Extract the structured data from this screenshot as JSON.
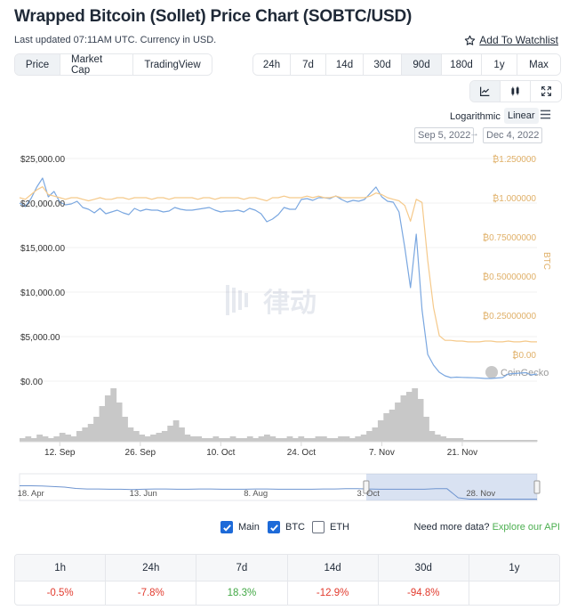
{
  "header": {
    "title": "Wrapped Bitcoin (Sollet) Price Chart (SOBTC/USD)",
    "subtitle": "Last updated 07:11AM UTC. Currency in USD.",
    "watchlist_label": "Add To Watchlist"
  },
  "type_tabs": [
    {
      "label": "Price",
      "active": true
    },
    {
      "label": "Market Cap",
      "active": false
    },
    {
      "label": "TradingView",
      "active": false
    }
  ],
  "range_tabs": [
    {
      "label": "24h",
      "active": false
    },
    {
      "label": "7d",
      "active": false
    },
    {
      "label": "14d",
      "active": false
    },
    {
      "label": "30d",
      "active": false
    },
    {
      "label": "90d",
      "active": true
    },
    {
      "label": "180d",
      "active": false
    },
    {
      "label": "1y",
      "active": false
    },
    {
      "label": "Max",
      "active": false
    }
  ],
  "view_icons": [
    "line-chart-icon",
    "candlestick-icon",
    "fullscreen-icon"
  ],
  "scale": {
    "log_label": "Logarithmic",
    "linear_label": "Linear",
    "active": "Linear"
  },
  "date_range": {
    "from": "Sep 5, 2022",
    "to": "Dec 4, 2022"
  },
  "watermark": {
    "brand": "CoinGecko",
    "logo_text": "律动"
  },
  "chart_data": {
    "type": "line",
    "left_axis": {
      "ticks": [
        "$0.00",
        "$5,000.00",
        "$10,000.00",
        "$15,000.00",
        "$20,000.00",
        "$25,000.00"
      ],
      "range": [
        0,
        25000
      ]
    },
    "right_axis": {
      "label": "BTC",
      "ticks": [
        "₿0.00",
        "₿0.25000000",
        "₿0.50000000",
        "₿0.75000000",
        "₿1.000000",
        "₿1.250000"
      ],
      "range": [
        0,
        1.25
      ]
    },
    "x_ticks": [
      "12. Sep",
      "26. Sep",
      "10. Oct",
      "24. Oct",
      "7. Nov",
      "21. Nov"
    ],
    "x_range_days": [
      0,
      90
    ],
    "x_tick_days": [
      7,
      21,
      35,
      49,
      63,
      77
    ],
    "series": [
      {
        "name": "Main",
        "axis": "left",
        "color": "#7aa7e0",
        "points": [
          [
            0,
            20000
          ],
          [
            1,
            19600
          ],
          [
            2,
            20500
          ],
          [
            3,
            21800
          ],
          [
            4,
            22800
          ],
          [
            5,
            20700
          ],
          [
            6,
            21300
          ],
          [
            7,
            20100
          ],
          [
            8,
            19800
          ],
          [
            9,
            19900
          ],
          [
            10,
            20200
          ],
          [
            11,
            19500
          ],
          [
            12,
            19300
          ],
          [
            13,
            18900
          ],
          [
            14,
            19400
          ],
          [
            15,
            18800
          ],
          [
            16,
            19000
          ],
          [
            17,
            19200
          ],
          [
            18,
            18900
          ],
          [
            19,
            18700
          ],
          [
            20,
            19400
          ],
          [
            21,
            19100
          ],
          [
            22,
            19300
          ],
          [
            23,
            19200
          ],
          [
            24,
            19200
          ],
          [
            25,
            19000
          ],
          [
            26,
            19100
          ],
          [
            27,
            19500
          ],
          [
            28,
            19300
          ],
          [
            29,
            19200
          ],
          [
            30,
            19200
          ],
          [
            31,
            19300
          ],
          [
            32,
            19400
          ],
          [
            33,
            19500
          ],
          [
            34,
            19200
          ],
          [
            35,
            19000
          ],
          [
            36,
            19100
          ],
          [
            37,
            19100
          ],
          [
            38,
            19200
          ],
          [
            39,
            19000
          ],
          [
            40,
            19400
          ],
          [
            41,
            19200
          ],
          [
            42,
            18800
          ],
          [
            43,
            17900
          ],
          [
            44,
            18200
          ],
          [
            45,
            18700
          ],
          [
            46,
            19500
          ],
          [
            47,
            19300
          ],
          [
            48,
            19300
          ],
          [
            49,
            20400
          ],
          [
            50,
            20500
          ],
          [
            51,
            20300
          ],
          [
            52,
            20600
          ],
          [
            53,
            20600
          ],
          [
            54,
            20500
          ],
          [
            55,
            20800
          ],
          [
            56,
            20400
          ],
          [
            57,
            20100
          ],
          [
            58,
            20300
          ],
          [
            59,
            20200
          ],
          [
            60,
            20400
          ],
          [
            61,
            21100
          ],
          [
            62,
            21800
          ],
          [
            63,
            20700
          ],
          [
            64,
            20200
          ],
          [
            65,
            20100
          ],
          [
            66,
            19000
          ],
          [
            67,
            15000
          ],
          [
            68,
            10500
          ],
          [
            69,
            16500
          ],
          [
            70,
            8000
          ],
          [
            71,
            3000
          ],
          [
            72,
            1800
          ],
          [
            73,
            1000
          ],
          [
            74,
            600
          ],
          [
            75,
            400
          ],
          [
            76,
            450
          ],
          [
            77,
            420
          ],
          [
            78,
            400
          ],
          [
            79,
            380
          ],
          [
            80,
            350
          ],
          [
            81,
            300
          ],
          [
            82,
            300
          ],
          [
            83,
            350
          ],
          [
            84,
            400
          ],
          [
            85,
            800
          ],
          [
            86,
            850
          ],
          [
            87,
            900
          ],
          [
            88,
            950
          ],
          [
            89,
            700
          ],
          [
            90,
            800
          ]
        ]
      },
      {
        "name": "BTC",
        "axis": "right",
        "color": "#f5c98a",
        "points": [
          [
            0,
            1.0
          ],
          [
            1,
            0.99
          ],
          [
            2,
            1.02
          ],
          [
            3,
            1.05
          ],
          [
            4,
            1.07
          ],
          [
            5,
            1.02
          ],
          [
            6,
            1.01
          ],
          [
            7,
            1.0
          ],
          [
            8,
            0.99
          ],
          [
            9,
            1.0
          ],
          [
            10,
            1.0
          ],
          [
            11,
            0.99
          ],
          [
            12,
            0.98
          ],
          [
            13,
            0.99
          ],
          [
            14,
            1.0
          ],
          [
            15,
            0.99
          ],
          [
            16,
            0.99
          ],
          [
            17,
            1.0
          ],
          [
            18,
            1.0
          ],
          [
            19,
            0.99
          ],
          [
            20,
            1.0
          ],
          [
            21,
            1.0
          ],
          [
            22,
            1.0
          ],
          [
            23,
            0.99
          ],
          [
            24,
            1.0
          ],
          [
            25,
            1.0
          ],
          [
            26,
            0.99
          ],
          [
            27,
            1.0
          ],
          [
            28,
            1.0
          ],
          [
            29,
            1.0
          ],
          [
            30,
            1.0
          ],
          [
            31,
            0.99
          ],
          [
            32,
            1.0
          ],
          [
            33,
            1.0
          ],
          [
            34,
            0.99
          ],
          [
            35,
            1.0
          ],
          [
            36,
            1.0
          ],
          [
            37,
            1.0
          ],
          [
            38,
            1.0
          ],
          [
            39,
            0.99
          ],
          [
            40,
            1.0
          ],
          [
            41,
            1.0
          ],
          [
            42,
            0.99
          ],
          [
            43,
            0.98
          ],
          [
            44,
            1.0
          ],
          [
            45,
            1.0
          ],
          [
            46,
            1.01
          ],
          [
            47,
            1.0
          ],
          [
            48,
            1.0
          ],
          [
            49,
            1.0
          ],
          [
            50,
            1.01
          ],
          [
            51,
            1.0
          ],
          [
            52,
            1.01
          ],
          [
            53,
            1.0
          ],
          [
            54,
            1.0
          ],
          [
            55,
            1.01
          ],
          [
            56,
            1.0
          ],
          [
            57,
            1.0
          ],
          [
            58,
            1.0
          ],
          [
            59,
            1.0
          ],
          [
            60,
            1.0
          ],
          [
            61,
            1.01
          ],
          [
            62,
            1.03
          ],
          [
            63,
            1.02
          ],
          [
            64,
            1.0
          ],
          [
            65,
            0.99
          ],
          [
            66,
            0.98
          ],
          [
            67,
            0.95
          ],
          [
            68,
            0.85
          ],
          [
            69,
            0.99
          ],
          [
            70,
            0.97
          ],
          [
            71,
            0.6
          ],
          [
            72,
            0.3
          ],
          [
            73,
            0.12
          ],
          [
            74,
            0.09
          ],
          [
            75,
            0.09
          ],
          [
            76,
            0.085
          ],
          [
            77,
            0.085
          ],
          [
            78,
            0.08
          ],
          [
            79,
            0.08
          ],
          [
            80,
            0.08
          ],
          [
            81,
            0.085
          ],
          [
            82,
            0.085
          ],
          [
            83,
            0.08
          ],
          [
            84,
            0.08
          ],
          [
            85,
            0.085
          ],
          [
            86,
            0.08
          ],
          [
            87,
            0.08
          ],
          [
            88,
            0.085
          ],
          [
            89,
            0.08
          ],
          [
            90,
            0.08
          ]
        ]
      }
    ],
    "volume": {
      "color": "#c8c8c8",
      "values": [
        2,
        3,
        2,
        4,
        3,
        2,
        3,
        5,
        4,
        3,
        6,
        8,
        10,
        14,
        20,
        26,
        30,
        22,
        14,
        8,
        6,
        4,
        3,
        4,
        5,
        6,
        9,
        12,
        8,
        4,
        3,
        3,
        2,
        2,
        3,
        2,
        2,
        3,
        2,
        2,
        3,
        2,
        3,
        4,
        3,
        2,
        2,
        3,
        2,
        3,
        2,
        2,
        3,
        3,
        2,
        2,
        3,
        3,
        2,
        3,
        4,
        6,
        8,
        12,
        16,
        18,
        22,
        26,
        28,
        30,
        24,
        14,
        6,
        4,
        3,
        2,
        2,
        2,
        1,
        1,
        1,
        1,
        1,
        1,
        1,
        1,
        1,
        1,
        1,
        1,
        1
      ]
    },
    "navigator": {
      "x_ticks": [
        "18. Apr",
        "13. Jun",
        "8. Aug",
        "3. Oct",
        "28. Nov"
      ],
      "selected_range": [
        0.67,
        1.0
      ],
      "values": [
        0.55,
        0.55,
        0.54,
        0.52,
        0.5,
        0.45,
        0.43,
        0.43,
        0.42,
        0.42,
        0.41,
        0.42,
        0.43,
        0.43,
        0.42,
        0.42,
        0.43,
        0.43,
        0.42,
        0.42,
        0.42,
        0.43,
        0.43,
        0.42,
        0.42,
        0.42,
        0.42,
        0.43,
        0.43,
        0.44,
        0.44,
        0.43,
        0.42,
        0.42,
        0.42,
        0.42,
        0.42,
        0.44,
        0.44,
        0.1,
        0.05,
        0.05,
        0.05,
        0.05,
        0.05,
        0.05,
        0.05
      ]
    }
  },
  "legend": [
    {
      "label": "Main",
      "checked": true
    },
    {
      "label": "BTC",
      "checked": true
    },
    {
      "label": "ETH",
      "checked": false
    }
  ],
  "more_data": {
    "prefix": "Need more data?",
    "link": "Explore our API"
  },
  "performance": [
    {
      "period": "1h",
      "value": "-0.5%",
      "trend": "neg"
    },
    {
      "period": "24h",
      "value": "-7.8%",
      "trend": "neg"
    },
    {
      "period": "7d",
      "value": "18.3%",
      "trend": "pos"
    },
    {
      "period": "14d",
      "value": "-12.9%",
      "trend": "neg"
    },
    {
      "period": "30d",
      "value": "-94.8%",
      "trend": "neg"
    },
    {
      "period": "1y",
      "value": "",
      "trend": "none"
    }
  ]
}
